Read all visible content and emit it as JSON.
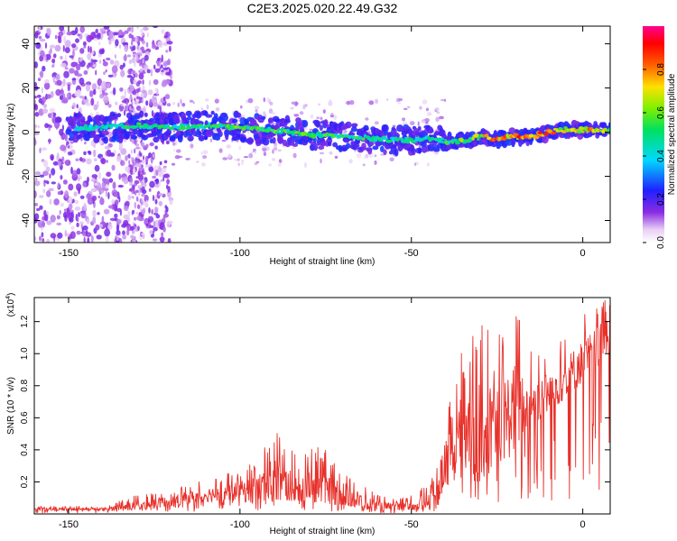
{
  "figure": {
    "title": "C2E3.2025.020.22.49.G32"
  },
  "chart_data": [
    {
      "type": "heatmap",
      "xlabel": "Height of straight line (km)",
      "ylabel": "Frequency (Hz)",
      "xlim": [
        -160,
        8
      ],
      "ylim": [
        -50,
        48
      ],
      "xticks": [
        -150,
        -100,
        -50,
        0
      ],
      "yticks": [
        -40,
        -20,
        0,
        20,
        40
      ],
      "colorbar": {
        "label": "Normalized spectral amplitude",
        "range": [
          0,
          1
        ],
        "ticks": [
          "0.0",
          "0.2",
          "0.4",
          "0.6",
          "0.8"
        ],
        "colormap": "rainbow (white-violet-blue-cyan-green-yellow-red-magenta)"
      },
      "ridge": {
        "description": "dominant frequency ridge",
        "x": [
          -148,
          -140,
          -130,
          -120,
          -110,
          -100,
          -90,
          -80,
          -70,
          -60,
          -50,
          -45,
          -40,
          -35,
          -30,
          -25,
          -20,
          -15,
          -10,
          -5,
          0,
          5,
          8
        ],
        "y": [
          2,
          2,
          3,
          2,
          3,
          2,
          1,
          -1,
          -2,
          -3,
          -4,
          -3,
          -4,
          -4,
          -2,
          -3,
          -2,
          -2,
          0,
          1,
          1,
          1,
          1
        ],
        "amplitude": [
          0.45,
          0.5,
          0.55,
          0.55,
          0.55,
          0.6,
          0.6,
          0.6,
          0.55,
          0.55,
          0.5,
          0.5,
          0.55,
          0.65,
          0.75,
          0.85,
          0.9,
          0.9,
          0.85,
          0.75,
          0.85,
          0.8,
          0.7
        ]
      },
      "grid": false
    },
    {
      "type": "line",
      "xlabel": "Height of straight line (km)",
      "ylabel": "SNR (10 * v/v)",
      "y_multiplier": "(x10",
      "y_multiplier_exponent": "4",
      "y_multiplier_close": ")",
      "xlim": [
        -160,
        8
      ],
      "ylim": [
        0,
        1.35
      ],
      "xticks": [
        -150,
        -100,
        -50,
        0
      ],
      "yticks": [
        "0.2",
        "0.4",
        "0.6",
        "0.8",
        "1.0",
        "1.2"
      ],
      "series": [
        {
          "color": "#e8302a",
          "envelope": {
            "x": [
              -160,
              -140,
              -130,
              -120,
              -110,
              -100,
              -95,
              -90,
              -85,
              -80,
              -75,
              -70,
              -65,
              -60,
              -55,
              -50,
              -45,
              -42,
              -40,
              -38,
              -35,
              -30,
              -25,
              -20,
              -15,
              -10,
              -5,
              0,
              5,
              8
            ],
            "y_mean": [
              0.03,
              0.03,
              0.05,
              0.08,
              0.12,
              0.14,
              0.15,
              0.2,
              0.17,
              0.18,
              0.16,
              0.13,
              0.08,
              0.05,
              0.04,
              0.05,
              0.08,
              0.12,
              0.25,
              0.45,
              0.5,
              0.5,
              0.55,
              0.65,
              0.7,
              0.75,
              0.85,
              0.95,
              1.05,
              1.1
            ],
            "y_max": [
              0.05,
              0.05,
              0.12,
              0.15,
              0.22,
              0.28,
              0.35,
              0.55,
              0.4,
              0.44,
              0.4,
              0.3,
              0.2,
              0.12,
              0.1,
              0.12,
              0.2,
              0.32,
              0.45,
              1.05,
              1.0,
              1.2,
              1.1,
              1.3,
              1.05,
              1.05,
              1.15,
              1.25,
              1.35,
              1.35
            ]
          }
        }
      ],
      "grid": false
    }
  ]
}
